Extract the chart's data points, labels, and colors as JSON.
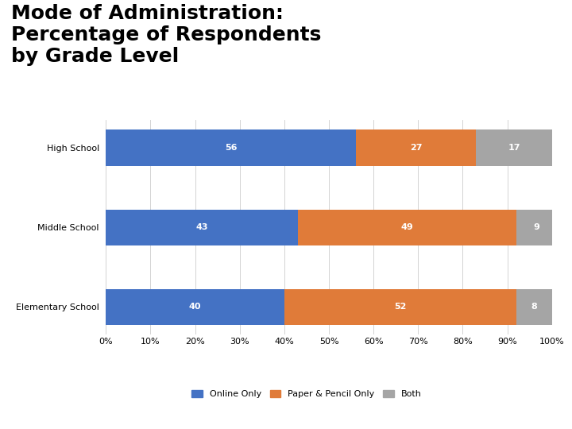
{
  "title": "Mode of Administration:\nPercentage of Respondents\nby Grade Level",
  "categories": [
    "High School",
    "Middle School",
    "Elementary School"
  ],
  "online_only": [
    56,
    43,
    40
  ],
  "paper_pencil": [
    27,
    49,
    52
  ],
  "both": [
    17,
    9,
    8
  ],
  "colors": {
    "online_only": "#4472C4",
    "paper_pencil": "#E07B39",
    "both": "#A5A5A5"
  },
  "legend_labels": [
    "Online Only",
    "Paper & Pencil Only",
    "Both"
  ],
  "x_ticks": [
    0,
    10,
    20,
    30,
    40,
    50,
    60,
    70,
    80,
    90,
    100
  ],
  "x_tick_labels": [
    "0%",
    "10%",
    "20%",
    "30%",
    "40%",
    "50%",
    "60%",
    "70%",
    "80%",
    "90%",
    "100%"
  ],
  "background_color": "#FFFFFF",
  "bar_height": 0.45,
  "title_fontsize": 18,
  "label_fontsize": 8,
  "tick_fontsize": 8,
  "legend_fontsize": 8,
  "category_fontsize": 8,
  "bottom_stripe_color": "#BE2B5D",
  "gray_stripe_color": "#595959"
}
